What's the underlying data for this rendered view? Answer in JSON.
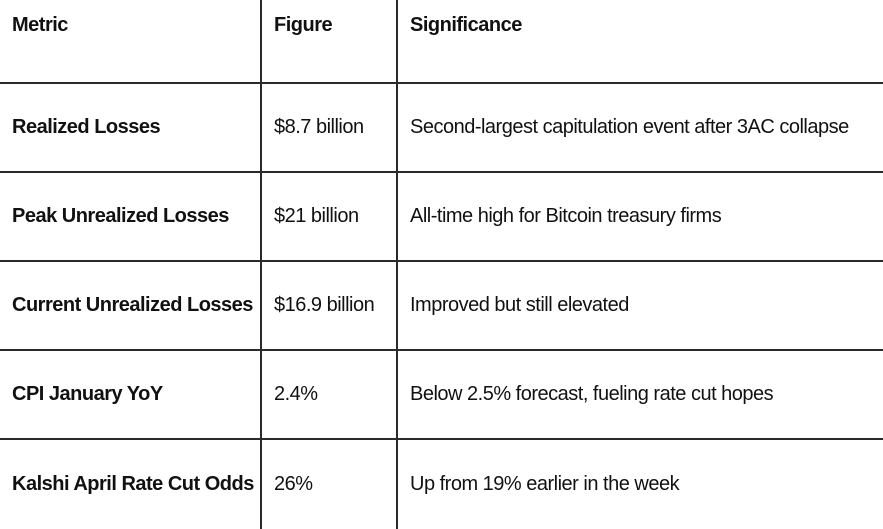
{
  "table": {
    "headers": {
      "metric": "Metric",
      "figure": "Figure",
      "significance": "Significance"
    },
    "rows": [
      {
        "metric": "Realized Losses",
        "figure": "$8.7 billion",
        "significance": "Second-largest capitulation event after 3AC collapse"
      },
      {
        "metric": "Peak Unrealized Losses",
        "figure": "$21 billion",
        "significance": "All-time high for Bitcoin treasury firms"
      },
      {
        "metric": "Current Unrealized Losses",
        "figure": "$16.9 billion",
        "significance": "Improved but still elevated"
      },
      {
        "metric": "CPI January YoY",
        "figure": "2.4%",
        "significance": "Below 2.5% forecast, fueling rate cut hopes"
      },
      {
        "metric": "Kalshi April Rate Cut Odds",
        "figure": "26%",
        "significance": "Up from 19% earlier in the week"
      }
    ]
  }
}
